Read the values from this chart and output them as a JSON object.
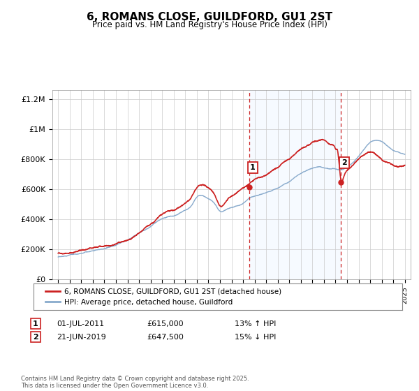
{
  "title": "6, ROMANS CLOSE, GUILDFORD, GU1 2ST",
  "subtitle": "Price paid vs. HM Land Registry's House Price Index (HPI)",
  "plot_bg_color": "#ffffff",
  "fig_bg_color": "#ffffff",
  "hpi_line_color": "#88aacc",
  "price_line_color": "#cc2222",
  "dashed_line_color": "#cc2222",
  "span_color": "#ddeeff",
  "legend_entries": [
    "6, ROMANS CLOSE, GUILDFORD, GU1 2ST (detached house)",
    "HPI: Average price, detached house, Guildford"
  ],
  "sale1_x": 2011.54,
  "sale1_y": 615000,
  "sale2_x": 2019.47,
  "sale2_y": 647500,
  "sale1_date": "01-JUL-2011",
  "sale1_price": "£615,000",
  "sale1_pct": "13% ↑ HPI",
  "sale2_date": "21-JUN-2019",
  "sale2_price": "£647,500",
  "sale2_pct": "15% ↓ HPI",
  "footer": "Contains HM Land Registry data © Crown copyright and database right 2025.\nThis data is licensed under the Open Government Licence v3.0.",
  "yticks": [
    0,
    200000,
    400000,
    600000,
    800000,
    1000000,
    1200000
  ],
  "ytick_labels": [
    "£0",
    "£200K",
    "£400K",
    "£600K",
    "£800K",
    "£1M",
    "£1.2M"
  ],
  "xmin": 1994.5,
  "xmax": 2025.5,
  "ymin": 0,
  "ymax": 1260000
}
